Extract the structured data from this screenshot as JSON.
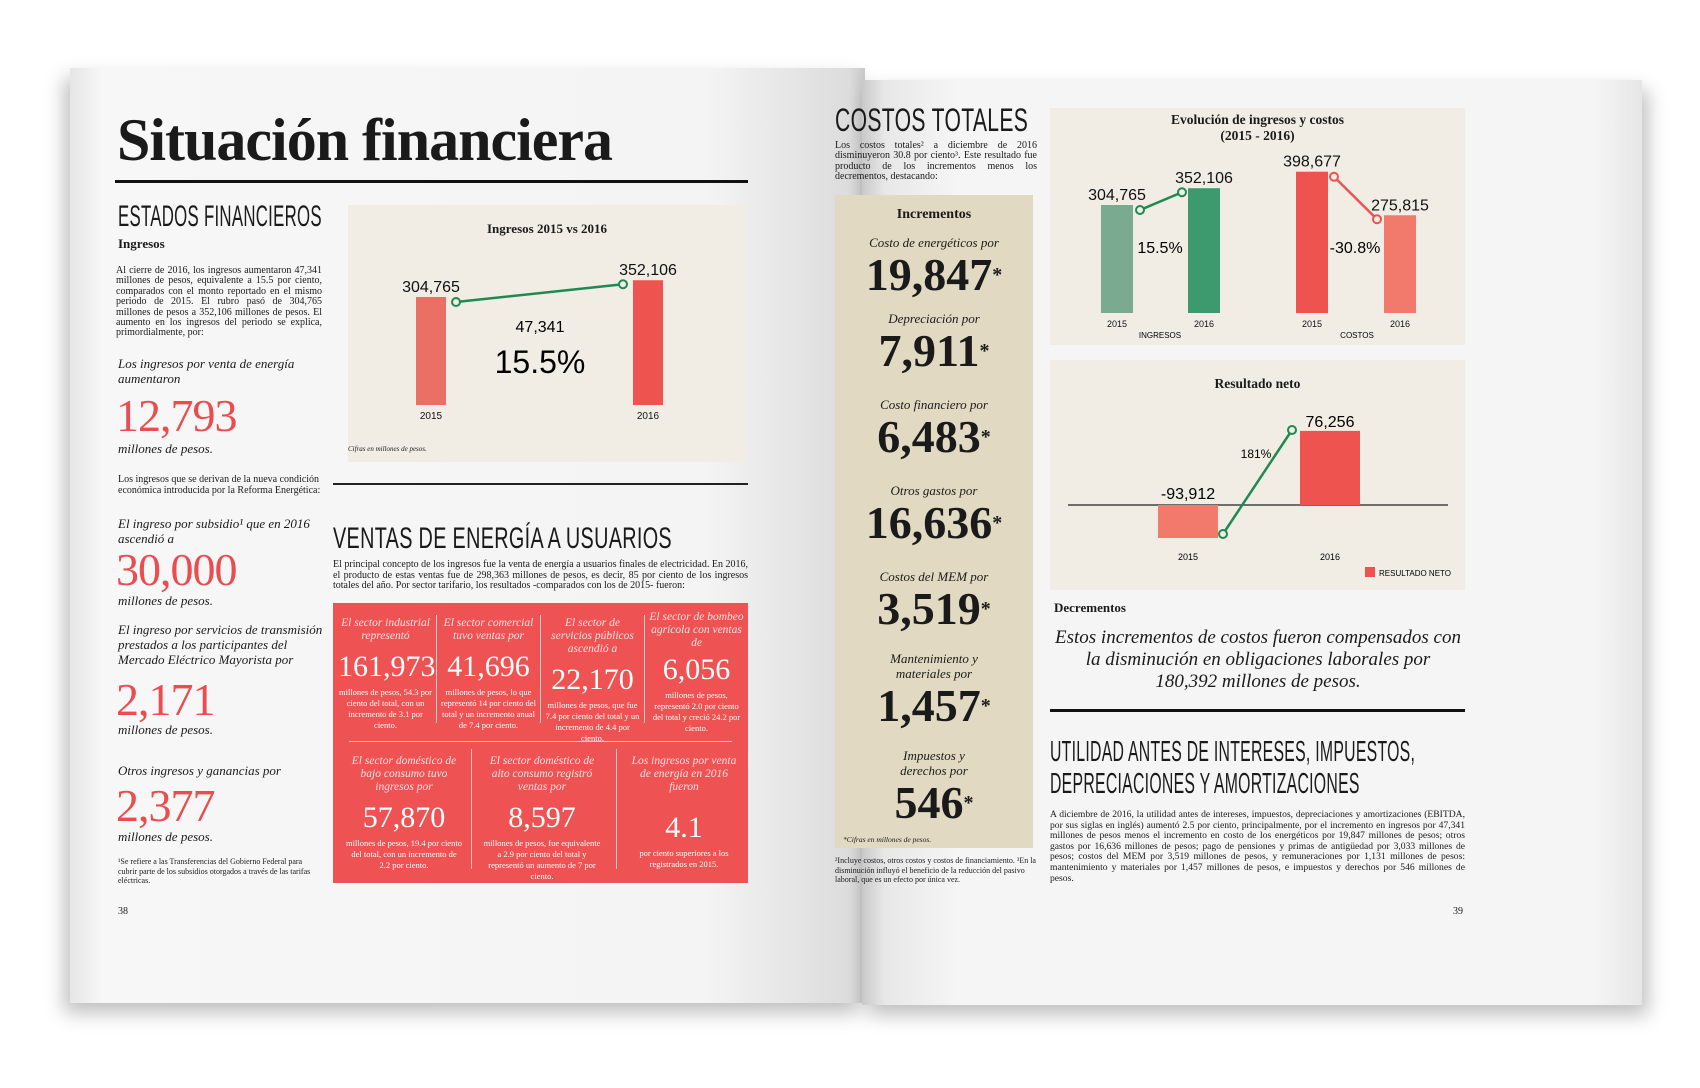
{
  "left": {
    "title": "Situación financiera",
    "section1": "ESTADOS FINANCIEROS",
    "subhead": "Ingresos",
    "intro": "Al cierre de 2016, los ingresos aumentaron 47,341 millones de pesos, equivalente a 15.5 por ciento, comparados con el monto reportado en el mismo periodo de 2015. El rubro pasó de 304,765 millones de pesos a 352,106 millones de pesos. El aumento en los ingresos del periodo se explica, primordialmente, por:",
    "items": [
      {
        "label": "Los ingresos por venta de energía aumentaron",
        "value": "12,793",
        "unit": "millones de pesos."
      },
      {
        "label": "El ingreso por subsidio¹ que en 2016 ascendió a",
        "value": "30,000",
        "unit": "millones de pesos."
      },
      {
        "label": "El ingreso por servicios de transmisión prestados a los participantes del Mercado Eléctrico Mayorista por",
        "value": "2,171",
        "unit": "millones de pesos."
      },
      {
        "label": "Otros ingresos y ganancias por",
        "value": "2,377",
        "unit": "millones de pesos."
      }
    ],
    "reform_text": "Los ingresos que se derivan de la nueva condición económica introducida por la Reforma Energética:",
    "footnote": "¹Se refiere a las Transferencias del Gobierno Federal para cubrir parte de los subsidios otorgados a través de las tarifas eléctricas.",
    "page_number": "38",
    "section2": "VENTAS DE ENERGÍA A USUARIOS",
    "ventas_text": "El principal concepto de los ingresos fue la venta de energía a usuarios finales de electricidad. En 2016, el producto de estas ventas fue de 298,363 millones de pesos, es decir, 85 por ciento de los ingresos totales del año. Por sector tarifario, los resultados -comparados con los de 2015- fueron:",
    "sectors_top": [
      {
        "label": "El sector industrial representó",
        "value": "161,973",
        "desc": "millones de pesos, 54.3 por ciento del total, con un incremento de 3.1 por ciento."
      },
      {
        "label": "El sector comercial tuvo ventas por",
        "value": "41,696",
        "desc": "millones de pesos, lo que representó 14 por ciento del total y un incremento anual de 7.4 por ciento."
      },
      {
        "label": "El sector de servicios públicos ascendió a",
        "value": "22,170",
        "desc": "millones de pesos, que fue 7.4 por ciento del total y un incremento de 4.4 por ciento."
      },
      {
        "label": "El sector de bombeo agrícola con ventas de",
        "value": "6,056",
        "desc": "millones de pesos, representó 2.0 por ciento del total y creció 24.2 por ciento."
      }
    ],
    "sectors_bottom": [
      {
        "label": "El sector doméstico de bajo consumo tuvo ingresos por",
        "value": "57,870",
        "desc": "millones de pesos, 19.4 por ciento del total, con un incremento de 2.2 por ciento."
      },
      {
        "label": "El sector doméstico de alto consumo registró ventas por",
        "value": "8,597",
        "desc": "millones de pesos, fue equivalente a 2.9 por ciento del total y representó un aumento de 7 por ciento."
      },
      {
        "label": "Los ingresos por venta de energía en 2016 fueron",
        "value": "4.1",
        "desc": "por ciento superiores a los registrados en 2015."
      }
    ]
  },
  "right": {
    "section1": "COSTOS TOTALES",
    "costos_text": "Los costos totales² a diciembre de 2016 disminuyeron 30.8 por ciento³. Este resultado fue producto de los incrementos menos los decrementos, destacando:",
    "increments_title": "Incrementos",
    "increments": [
      {
        "label": "Costo de energéticos por",
        "value": "19,847"
      },
      {
        "label": "Depreciación por",
        "value": "7,911"
      },
      {
        "label": "Costo financiero por",
        "value": "6,483"
      },
      {
        "label": "Otros gastos por",
        "value": "16,636"
      },
      {
        "label": "Costos del MEM por",
        "value": "3,519"
      },
      {
        "label": "Mantenimiento y materiales por",
        "value": "1,457"
      },
      {
        "label": "Impuestos y derechos por",
        "value": "546"
      }
    ],
    "asterisk": "*",
    "increments_note": "*Cifras en millones de pesos.",
    "footnotes": "²Incluye costos, otros costos y costos de financiamiento. ³En la disminución influyó el beneficio de la reducción del pasivo laboral, que es un efecto por única vez.",
    "decrementos_title": "Decrementos",
    "decrementos_text": "Estos incrementos de costos fueron compensados con la disminución en obligaciones laborales por 180,392 millones de pesos.",
    "section2": "UTILIDAD ANTES DE INTERESES, IMPUESTOS, DEPRECIACIONES Y AMORTIZACIONES",
    "ebitda_text": "A diciembre de 2016, la utilidad antes de intereses, impuestos, depreciaciones y amortizaciones (EBITDA, por sus siglas en inglés) aumentó 2.5 por ciento, principalmente, por el incremento en ingresos por 47,341 millones de pesos menos el incremento en costo de los energéticos por 19,847 millones de pesos; otros gastos por 16,636 millones de pesos; pago de pensiones y primas de antigüedad por 3,033 millones de pesos; costos del MEM por 3,519 millones de pesos, y remuneraciones por 1,131 millones de pesos: mantenimiento y materiales por 1,457 millones de pesos, e impuestos y derechos por 546 millones de pesos.",
    "page_number": "39"
  },
  "chart_data": [
    {
      "type": "bar",
      "title": "Ingresos 2015 vs 2016",
      "categories": [
        "2015",
        "2016"
      ],
      "values": [
        304765,
        352106
      ],
      "value_labels": [
        "304,765",
        "352,106"
      ],
      "annotations": [
        "47,341",
        "15.5%"
      ],
      "note": "Cifras en millones de pesos.",
      "colors": [
        "#ea7066",
        "#ef5350"
      ],
      "connector_color": "#1e8a52"
    },
    {
      "type": "bar",
      "title": "Evolución de ingresos y costos",
      "subtitle": "(2015 - 2016)",
      "groups": [
        {
          "name": "INGRESOS",
          "categories": [
            "2015",
            "2016"
          ],
          "values": [
            304765,
            352106
          ],
          "value_labels": [
            "304,765",
            "352,106"
          ],
          "change": "15.5%",
          "colors": [
            "#7aaa8f",
            "#3c9a6e"
          ],
          "connector_color": "#1e8a52"
        },
        {
          "name": "COSTOS",
          "categories": [
            "2015",
            "2016"
          ],
          "values": [
            398677,
            275815
          ],
          "value_labels": [
            "398,677",
            "275,815"
          ],
          "change": "-30.8%",
          "colors": [
            "#ef5350",
            "#f17a6c"
          ],
          "connector_color": "#ef5350"
        }
      ]
    },
    {
      "type": "bar",
      "title": "Resultado neto",
      "categories": [
        "2015",
        "2016"
      ],
      "values": [
        -93912,
        76256
      ],
      "value_labels": [
        "-93,912",
        "76,256"
      ],
      "change": "181%",
      "legend": "RESULTADO NETO",
      "legend_position": "bottom-right",
      "colors": [
        "#f17a6c",
        "#ef5350"
      ],
      "connector_color": "#1e8a52"
    }
  ]
}
